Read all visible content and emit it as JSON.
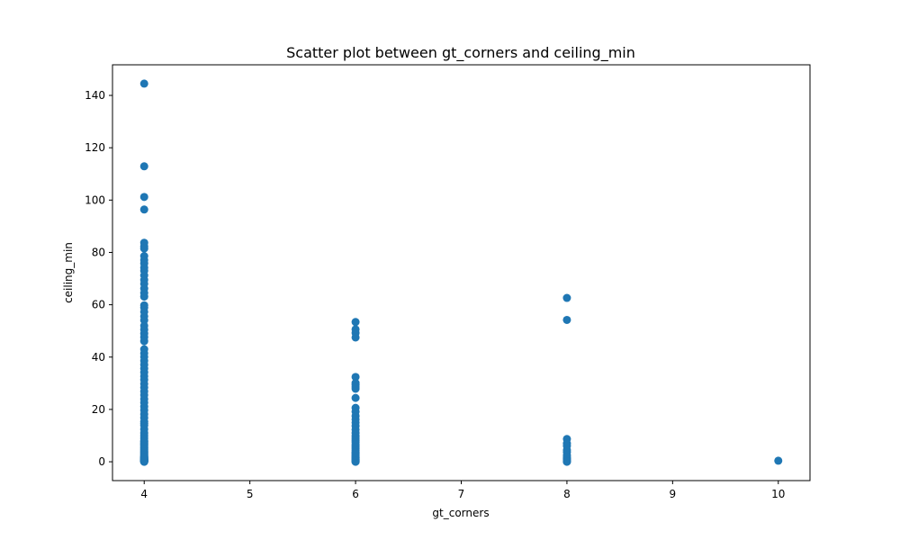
{
  "chart_data": {
    "type": "scatter",
    "title": "Scatter plot between gt_corners and ceiling_min",
    "xlabel": "gt_corners",
    "ylabel": "ceiling_min",
    "xlim": [
      3.7,
      10.3
    ],
    "ylim": [
      -7.2,
      151.7
    ],
    "xticks": [
      4,
      5,
      6,
      7,
      8,
      9,
      10
    ],
    "yticks": [
      0,
      20,
      40,
      60,
      80,
      100,
      120,
      140
    ],
    "grid": false,
    "legend": "none",
    "marker_color": "#1f77b4",
    "series": [
      {
        "x": [
          4,
          4,
          4,
          4,
          4,
          4,
          4,
          4,
          4,
          4,
          4,
          4,
          4,
          4,
          4,
          4,
          4,
          4,
          4,
          4,
          4,
          4,
          4,
          4,
          4,
          4,
          4,
          4,
          4,
          4,
          4,
          4,
          4,
          4,
          4,
          4,
          4,
          4,
          4,
          4,
          4,
          4,
          4,
          4,
          4,
          4,
          4,
          4,
          4,
          4,
          4,
          4,
          4,
          4,
          4,
          4,
          4,
          4,
          4,
          4,
          4,
          4,
          4,
          4,
          4,
          4,
          4,
          4,
          4,
          4,
          4,
          4,
          4,
          4,
          4,
          4,
          4,
          4,
          4,
          4,
          4,
          4,
          4,
          4,
          4,
          4,
          4,
          4,
          4,
          4,
          4,
          4,
          4,
          4,
          4,
          6,
          6,
          6,
          6,
          6,
          6,
          6,
          6,
          6,
          6,
          6,
          6,
          6,
          6,
          6,
          6,
          6,
          6,
          6,
          6,
          6,
          6,
          6,
          6,
          6,
          6,
          6,
          6,
          6,
          6,
          6,
          6,
          6,
          6,
          6,
          6,
          6,
          6,
          6,
          6,
          6,
          6,
          6,
          6,
          8,
          8,
          8,
          8,
          8,
          8,
          8,
          8,
          8,
          8,
          8,
          8,
          8,
          8,
          10
        ],
        "y": [
          144.5,
          112.9,
          101.2,
          96.4,
          83.7,
          82.3,
          81.5,
          78.6,
          77.1,
          75.8,
          74.2,
          73.0,
          71.2,
          69.5,
          68.0,
          66.2,
          64.5,
          63.1,
          59.8,
          58.9,
          57.3,
          55.6,
          54.1,
          52.0,
          50.5,
          49.0,
          47.6,
          46.1,
          43.0,
          41.5,
          40.1,
          38.6,
          37.1,
          35.6,
          34.2,
          32.7,
          31.3,
          29.8,
          28.4,
          26.9,
          25.5,
          24.0,
          22.6,
          21.1,
          19.7,
          18.2,
          16.8,
          15.3,
          14.6,
          13.9,
          12.4,
          11.0,
          10.2,
          9.5,
          8.8,
          8.0,
          7.3,
          6.6,
          5.8,
          5.1,
          4.4,
          3.6,
          2.9,
          2.2,
          1.8,
          1.5,
          1.1,
          0.7,
          0.4,
          0.2,
          0.1,
          0.0,
          0.3,
          0.6,
          0.9,
          1.3,
          1.6,
          2.0,
          2.5,
          3.2,
          3.9,
          4.7,
          5.4,
          6.2,
          6.9,
          7.7,
          0.05,
          0.15,
          0.25,
          0.35,
          0.45,
          0.55,
          0.65,
          0.8,
          1.0,
          53.4,
          50.6,
          49.2,
          47.5,
          32.4,
          30.1,
          29.4,
          28.6,
          27.9,
          24.4,
          20.6,
          19.1,
          17.5,
          16.2,
          15.0,
          13.7,
          12.3,
          11.0,
          9.8,
          9.0,
          8.2,
          7.4,
          6.5,
          5.8,
          5.1,
          4.4,
          3.7,
          3.1,
          2.6,
          2.1,
          1.7,
          1.3,
          1.0,
          0.7,
          0.5,
          0.3,
          0.2,
          0.1,
          0.0,
          0.4,
          0.8,
          1.5,
          2.3,
          3.4,
          62.6,
          54.2,
          8.7,
          7.0,
          6.1,
          4.5,
          3.7,
          2.5,
          1.8,
          1.2,
          0.8,
          0.4,
          0.1,
          0.0,
          0.4
        ]
      }
    ]
  }
}
